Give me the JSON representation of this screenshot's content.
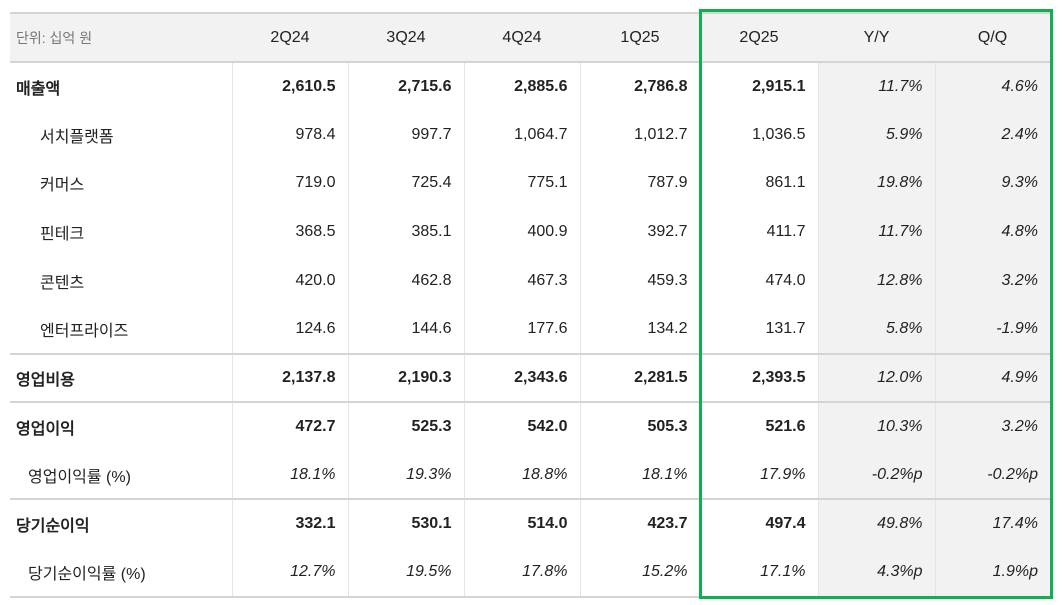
{
  "table": {
    "unit_label": "단위: 십억 원",
    "columns": [
      "2Q24",
      "3Q24",
      "4Q24",
      "1Q25",
      "2Q25",
      "Y/Y",
      "Q/Q"
    ],
    "rows": [
      {
        "label": "매출액",
        "type": "main",
        "values": [
          "2,610.5",
          "2,715.6",
          "2,885.6",
          "2,786.8",
          "2,915.1",
          "11.7%",
          "4.6%"
        ]
      },
      {
        "label": "서치플랫폼",
        "type": "sub",
        "values": [
          "978.4",
          "997.7",
          "1,064.7",
          "1,012.7",
          "1,036.5",
          "5.9%",
          "2.4%"
        ]
      },
      {
        "label": "커머스",
        "type": "sub",
        "values": [
          "719.0",
          "725.4",
          "775.1",
          "787.9",
          "861.1",
          "19.8%",
          "9.3%"
        ]
      },
      {
        "label": "핀테크",
        "type": "sub",
        "values": [
          "368.5",
          "385.1",
          "400.9",
          "392.7",
          "411.7",
          "11.7%",
          "4.8%"
        ]
      },
      {
        "label": "콘텐츠",
        "type": "sub",
        "values": [
          "420.0",
          "462.8",
          "467.3",
          "459.3",
          "474.0",
          "12.8%",
          "3.2%"
        ]
      },
      {
        "label": "엔터프라이즈",
        "type": "sub",
        "values": [
          "124.6",
          "144.6",
          "177.6",
          "134.2",
          "131.7",
          "5.8%",
          "-1.9%"
        ]
      },
      {
        "label": "영업비용",
        "type": "main",
        "sep": true,
        "values": [
          "2,137.8",
          "2,190.3",
          "2,343.6",
          "2,281.5",
          "2,393.5",
          "12.0%",
          "4.9%"
        ]
      },
      {
        "label": "영업이익",
        "type": "main",
        "sep": true,
        "values": [
          "472.7",
          "525.3",
          "542.0",
          "505.3",
          "521.6",
          "10.3%",
          "3.2%"
        ]
      },
      {
        "label": "영업이익률 (%)",
        "type": "ratio",
        "values": [
          "18.1%",
          "19.3%",
          "18.8%",
          "18.1%",
          "17.9%",
          "-0.2%p",
          "-0.2%p"
        ]
      },
      {
        "label": "당기순이익",
        "type": "main",
        "sep": true,
        "values": [
          "332.1",
          "530.1",
          "514.0",
          "423.7",
          "497.4",
          "49.8%",
          "17.4%"
        ]
      },
      {
        "label": "당기순이익률 (%)",
        "type": "ratio",
        "values": [
          "12.7%",
          "19.5%",
          "17.8%",
          "15.2%",
          "17.1%",
          "4.3%p",
          "1.9%p"
        ]
      }
    ]
  },
  "colors": {
    "accent": "#0fb14f",
    "header_bg": "#f2f2f2",
    "highlight_border": "#0fb14f"
  }
}
